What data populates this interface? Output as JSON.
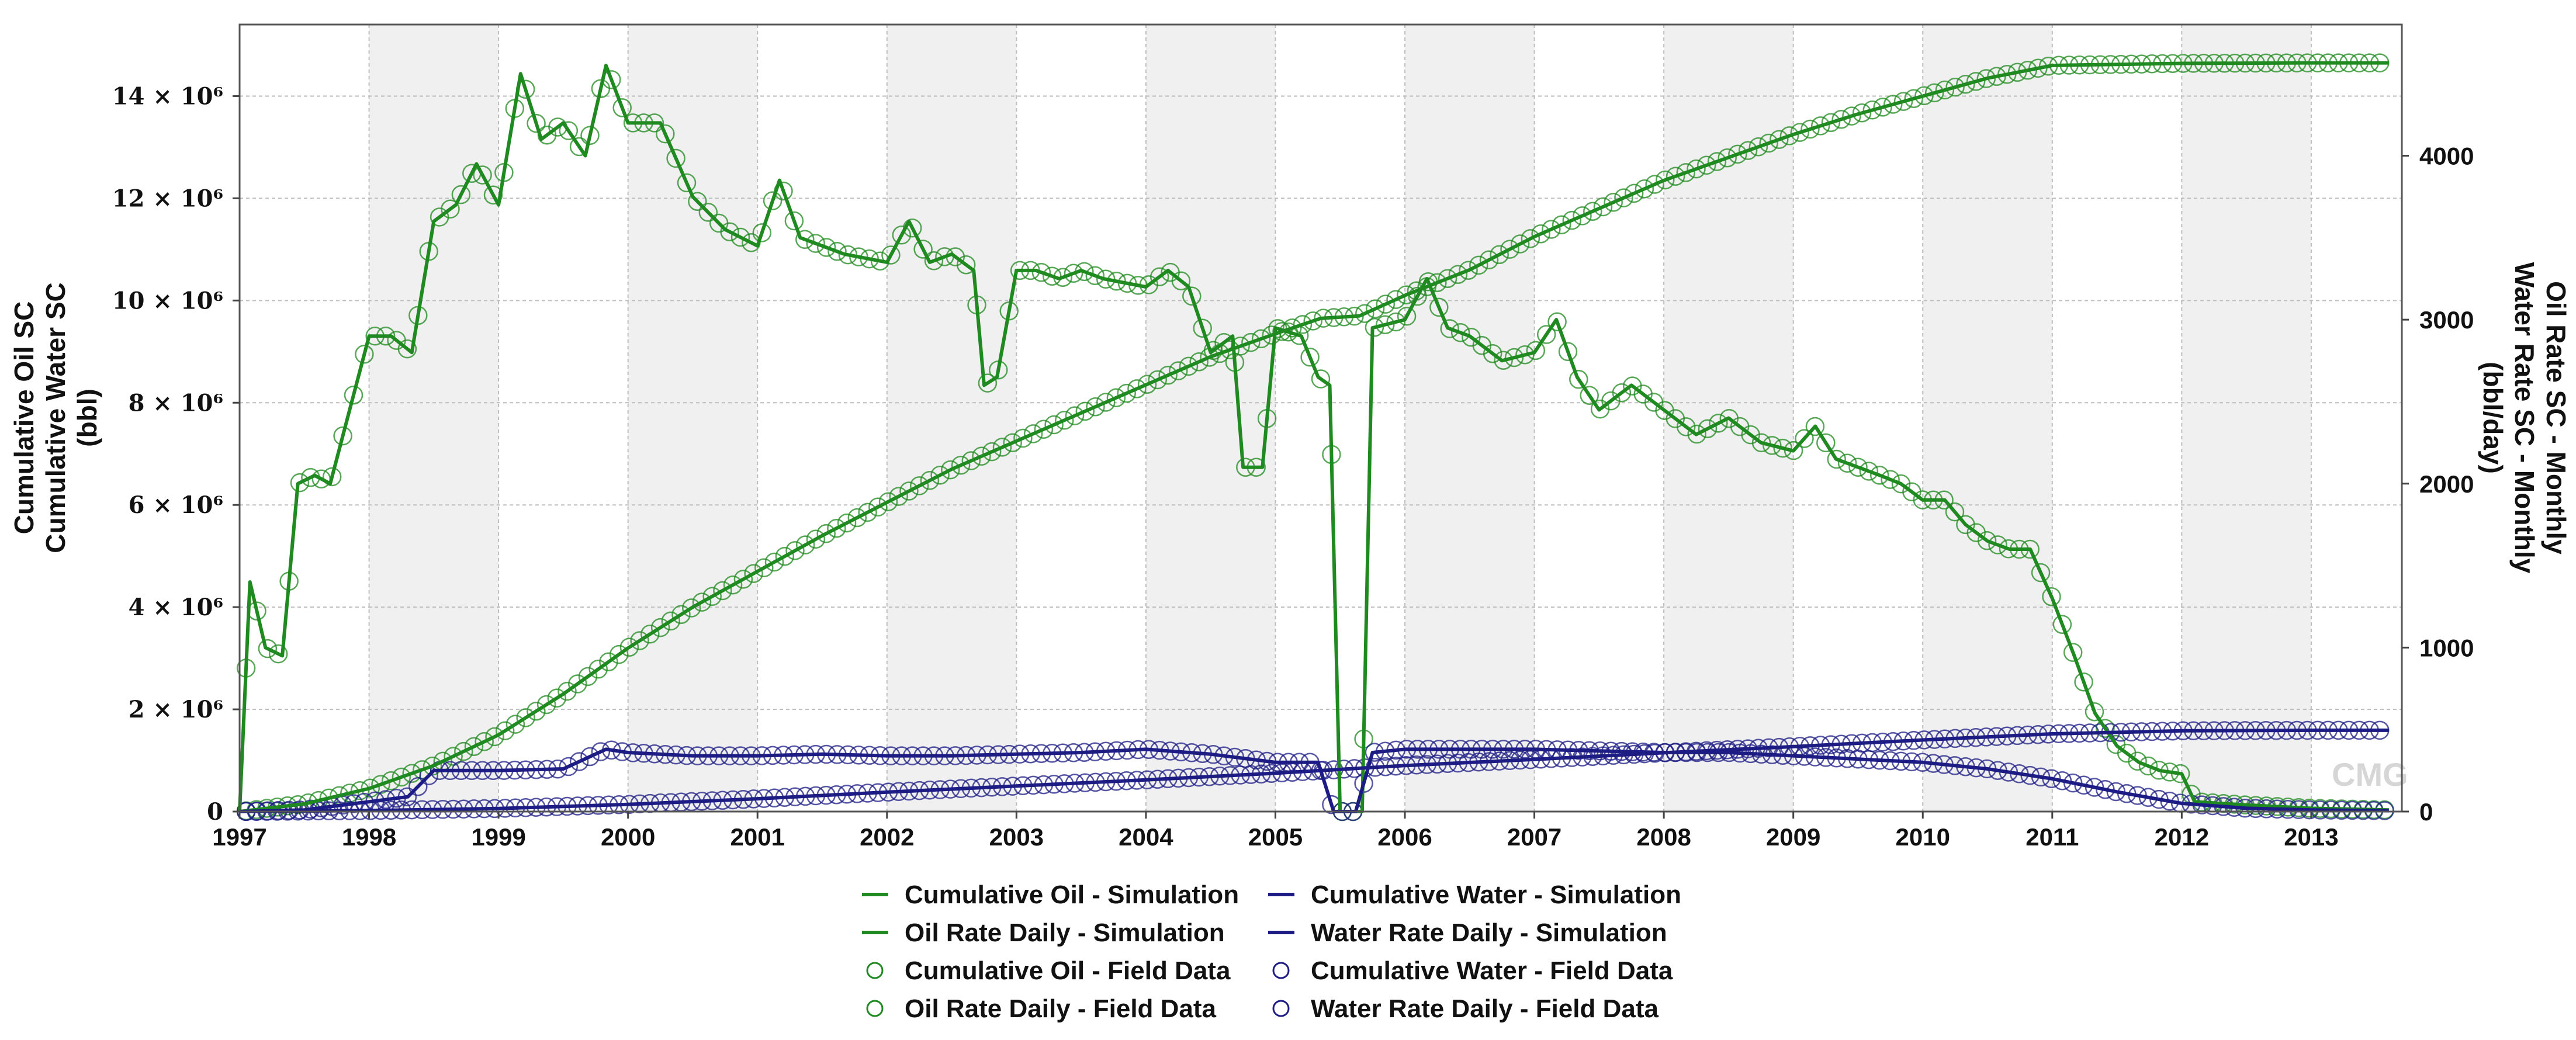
{
  "chart_data": {
    "type": "line",
    "title": "",
    "watermark": "CMG",
    "x": {
      "ticks": [
        "1997",
        "1998",
        "1999",
        "2000",
        "2001",
        "2002",
        "2003",
        "2004",
        "2005",
        "2006",
        "2007",
        "2008",
        "2009",
        "2010",
        "2011",
        "2012",
        "2013"
      ],
      "range": [
        1997,
        2013.7
      ]
    },
    "y_left": {
      "labels": [
        "Cumulative Oil SC",
        "Cumulative Water SC",
        "(bbl)"
      ],
      "range": [
        0,
        15400000
      ],
      "ticks": [
        {
          "value": 0,
          "label": "0"
        },
        {
          "value": 2000000,
          "label": "2 × 10⁶"
        },
        {
          "value": 4000000,
          "label": "4 × 10⁶"
        },
        {
          "value": 6000000,
          "label": "6 × 10⁶"
        },
        {
          "value": 8000000,
          "label": "8 × 10⁶"
        },
        {
          "value": 10000000,
          "label": "10 × 10⁶"
        },
        {
          "value": 12000000,
          "label": "12 × 10⁶"
        },
        {
          "value": 14000000,
          "label": "14 × 10⁶"
        }
      ]
    },
    "y_right": {
      "labels": [
        "Oil Rate SC - Monthly",
        "Water Rate SC - Monthly",
        "(bbl/day)"
      ],
      "range": [
        0,
        4800
      ],
      "ticks": [
        {
          "value": 0,
          "label": "0"
        },
        {
          "value": 1000,
          "label": "1000"
        },
        {
          "value": 2000,
          "label": "2000"
        },
        {
          "value": 3000,
          "label": "3000"
        },
        {
          "value": 4000,
          "label": "4000"
        }
      ]
    },
    "series": [
      {
        "name": "Cumulative Oil - Simulation",
        "kind": "line",
        "axis": "left",
        "color": "#1f8a1f",
        "points": [
          [
            1997.0,
            0
          ],
          [
            1997.5,
            150000
          ],
          [
            1998.0,
            450000
          ],
          [
            1998.5,
            900000
          ],
          [
            1999.0,
            1500000
          ],
          [
            1999.5,
            2300000
          ],
          [
            2000.0,
            3200000
          ],
          [
            2000.5,
            4000000
          ],
          [
            2001.0,
            4700000
          ],
          [
            2001.5,
            5400000
          ],
          [
            2002.0,
            6050000
          ],
          [
            2002.5,
            6700000
          ],
          [
            2003.0,
            7250000
          ],
          [
            2003.5,
            7800000
          ],
          [
            2004.0,
            8350000
          ],
          [
            2004.5,
            8900000
          ],
          [
            2005.0,
            9350000
          ],
          [
            2005.35,
            9650000
          ],
          [
            2005.65,
            9700000
          ],
          [
            2006.0,
            10100000
          ],
          [
            2006.5,
            10600000
          ],
          [
            2007.0,
            11250000
          ],
          [
            2007.5,
            11800000
          ],
          [
            2008.0,
            12350000
          ],
          [
            2008.5,
            12800000
          ],
          [
            2009.0,
            13250000
          ],
          [
            2009.5,
            13650000
          ],
          [
            2010.0,
            14000000
          ],
          [
            2010.5,
            14350000
          ],
          [
            2011.0,
            14600000
          ],
          [
            2011.5,
            14620000
          ],
          [
            2012.0,
            14640000
          ],
          [
            2013.0,
            14650000
          ],
          [
            2013.6,
            14650000
          ]
        ]
      },
      {
        "name": "Oil Rate Daily - Simulation",
        "kind": "line",
        "axis": "right",
        "color": "#1f8a1f",
        "points": [
          [
            1997.0,
            0
          ],
          [
            1997.08,
            1400
          ],
          [
            1997.2,
            1000
          ],
          [
            1997.33,
            950
          ],
          [
            1997.45,
            2000
          ],
          [
            1997.58,
            2050
          ],
          [
            1997.7,
            2000
          ],
          [
            1997.85,
            2450
          ],
          [
            1998.0,
            2900
          ],
          [
            1998.17,
            2900
          ],
          [
            1998.33,
            2800
          ],
          [
            1998.5,
            3600
          ],
          [
            1998.67,
            3700
          ],
          [
            1998.83,
            3950
          ],
          [
            1999.0,
            3700
          ],
          [
            1999.17,
            4500
          ],
          [
            1999.33,
            4100
          ],
          [
            1999.5,
            4200
          ],
          [
            1999.67,
            4000
          ],
          [
            1999.83,
            4550
          ],
          [
            2000.0,
            4200
          ],
          [
            2000.25,
            4200
          ],
          [
            2000.5,
            3750
          ],
          [
            2000.75,
            3550
          ],
          [
            2001.0,
            3450
          ],
          [
            2001.17,
            3850
          ],
          [
            2001.33,
            3500
          ],
          [
            2001.67,
            3400
          ],
          [
            2002.0,
            3350
          ],
          [
            2002.17,
            3600
          ],
          [
            2002.33,
            3350
          ],
          [
            2002.5,
            3400
          ],
          [
            2002.67,
            3300
          ],
          [
            2002.75,
            2600
          ],
          [
            2002.85,
            2650
          ],
          [
            2003.0,
            3300
          ],
          [
            2003.15,
            3300
          ],
          [
            2003.33,
            3250
          ],
          [
            2003.5,
            3300
          ],
          [
            2003.67,
            3250
          ],
          [
            2004.0,
            3200
          ],
          [
            2004.17,
            3300
          ],
          [
            2004.33,
            3200
          ],
          [
            2004.5,
            2800
          ],
          [
            2004.67,
            2900
          ],
          [
            2004.75,
            2100
          ],
          [
            2004.9,
            2100
          ],
          [
            2005.0,
            2950
          ],
          [
            2005.2,
            2900
          ],
          [
            2005.33,
            2650
          ],
          [
            2005.42,
            2600
          ],
          [
            2005.5,
            0
          ],
          [
            2005.67,
            0
          ],
          [
            2005.75,
            2950
          ],
          [
            2006.0,
            3000
          ],
          [
            2006.17,
            3250
          ],
          [
            2006.33,
            2950
          ],
          [
            2006.5,
            2900
          ],
          [
            2006.75,
            2750
          ],
          [
            2007.0,
            2800
          ],
          [
            2007.17,
            3000
          ],
          [
            2007.33,
            2650
          ],
          [
            2007.5,
            2450
          ],
          [
            2007.75,
            2600
          ],
          [
            2008.0,
            2450
          ],
          [
            2008.25,
            2300
          ],
          [
            2008.5,
            2400
          ],
          [
            2008.75,
            2250
          ],
          [
            2009.0,
            2200
          ],
          [
            2009.17,
            2350
          ],
          [
            2009.33,
            2150
          ],
          [
            2009.5,
            2100
          ],
          [
            2009.67,
            2050
          ],
          [
            2009.83,
            2000
          ],
          [
            2010.0,
            1900
          ],
          [
            2010.17,
            1900
          ],
          [
            2010.33,
            1750
          ],
          [
            2010.5,
            1650
          ],
          [
            2010.67,
            1600
          ],
          [
            2010.83,
            1600
          ],
          [
            2011.0,
            1300
          ],
          [
            2011.17,
            950
          ],
          [
            2011.33,
            600
          ],
          [
            2011.5,
            400
          ],
          [
            2011.67,
            300
          ],
          [
            2011.83,
            250
          ],
          [
            2012.0,
            230
          ],
          [
            2012.1,
            60
          ],
          [
            2012.5,
            40
          ],
          [
            2013.0,
            20
          ],
          [
            2013.6,
            10
          ]
        ]
      },
      {
        "name": "Cumulative Water - Simulation",
        "kind": "line",
        "axis": "left",
        "color": "#1c1c84",
        "points": [
          [
            1997.0,
            0
          ],
          [
            1998.0,
            20000
          ],
          [
            1999.0,
            60000
          ],
          [
            2000.0,
            140000
          ],
          [
            2001.0,
            250000
          ],
          [
            2002.0,
            380000
          ],
          [
            2003.0,
            500000
          ],
          [
            2004.0,
            620000
          ],
          [
            2005.0,
            750000
          ],
          [
            2006.0,
            900000
          ],
          [
            2007.0,
            1020000
          ],
          [
            2008.0,
            1150000
          ],
          [
            2009.0,
            1270000
          ],
          [
            2010.0,
            1400000
          ],
          [
            2011.0,
            1520000
          ],
          [
            2012.0,
            1580000
          ],
          [
            2013.0,
            1590000
          ],
          [
            2013.6,
            1590000
          ]
        ]
      },
      {
        "name": "Water Rate Daily - Simulation",
        "kind": "line",
        "axis": "right",
        "color": "#1c1c84",
        "points": [
          [
            1997.0,
            0
          ],
          [
            1997.5,
            10
          ],
          [
            1998.0,
            60
          ],
          [
            1998.3,
            90
          ],
          [
            1998.5,
            250
          ],
          [
            1998.8,
            250
          ],
          [
            1999.0,
            250
          ],
          [
            1999.5,
            260
          ],
          [
            1999.83,
            380
          ],
          [
            2000.0,
            360
          ],
          [
            2000.5,
            340
          ],
          [
            2001.0,
            340
          ],
          [
            2001.5,
            350
          ],
          [
            2002.0,
            340
          ],
          [
            2002.5,
            340
          ],
          [
            2003.0,
            350
          ],
          [
            2003.5,
            360
          ],
          [
            2004.0,
            380
          ],
          [
            2004.5,
            350
          ],
          [
            2005.0,
            300
          ],
          [
            2005.33,
            300
          ],
          [
            2005.45,
            0
          ],
          [
            2005.62,
            0
          ],
          [
            2005.75,
            360
          ],
          [
            2006.0,
            380
          ],
          [
            2006.5,
            380
          ],
          [
            2007.0,
            380
          ],
          [
            2007.5,
            370
          ],
          [
            2008.0,
            360
          ],
          [
            2008.5,
            360
          ],
          [
            2009.0,
            340
          ],
          [
            2009.5,
            320
          ],
          [
            2010.0,
            300
          ],
          [
            2010.5,
            260
          ],
          [
            2011.0,
            200
          ],
          [
            2011.5,
            120
          ],
          [
            2012.0,
            50
          ],
          [
            2012.5,
            20
          ],
          [
            2013.0,
            10
          ],
          [
            2013.6,
            5
          ]
        ]
      },
      {
        "name": "Cumulative Oil - Field Data",
        "kind": "markers",
        "axis": "left",
        "color": "#1f8a1f",
        "step": 0.08,
        "follows": "Cumulative Oil - Simulation"
      },
      {
        "name": "Oil Rate Daily - Field Data",
        "kind": "markers",
        "axis": "right",
        "color": "#1f8a1f",
        "step": 0.083,
        "follows": "Oil Rate Daily - Simulation"
      },
      {
        "name": "Cumulative Water - Field Data",
        "kind": "markers",
        "axis": "left",
        "color": "#1c1c84",
        "step": 0.08,
        "follows": "Cumulative Water - Simulation"
      },
      {
        "name": "Water Rate Daily - Field Data",
        "kind": "markers",
        "axis": "right",
        "color": "#1c1c84",
        "step": 0.083,
        "follows": "Water Rate Daily - Simulation"
      }
    ],
    "legend": {
      "position": "bottom-center",
      "entries": [
        {
          "label": "Cumulative Oil - Simulation",
          "type": "line",
          "color": "#1f8a1f"
        },
        {
          "label": "Cumulative Water - Simulation",
          "type": "line",
          "color": "#1c1c84"
        },
        {
          "label": "Oil Rate Daily - Simulation",
          "type": "line",
          "color": "#1f8a1f"
        },
        {
          "label": "Water Rate Daily - Simulation",
          "type": "line",
          "color": "#1c1c84"
        },
        {
          "label": "Cumulative Oil - Field Data",
          "type": "marker",
          "color": "#1f8a1f"
        },
        {
          "label": "Cumulative Water - Field Data",
          "type": "marker",
          "color": "#1c1c84"
        },
        {
          "label": "Oil Rate Daily - Field Data",
          "type": "marker",
          "color": "#1f8a1f"
        },
        {
          "label": "Water Rate Daily - Field Data",
          "type": "marker",
          "color": "#1c1c84"
        }
      ]
    },
    "grid": true,
    "alternating_year_shading": true
  }
}
